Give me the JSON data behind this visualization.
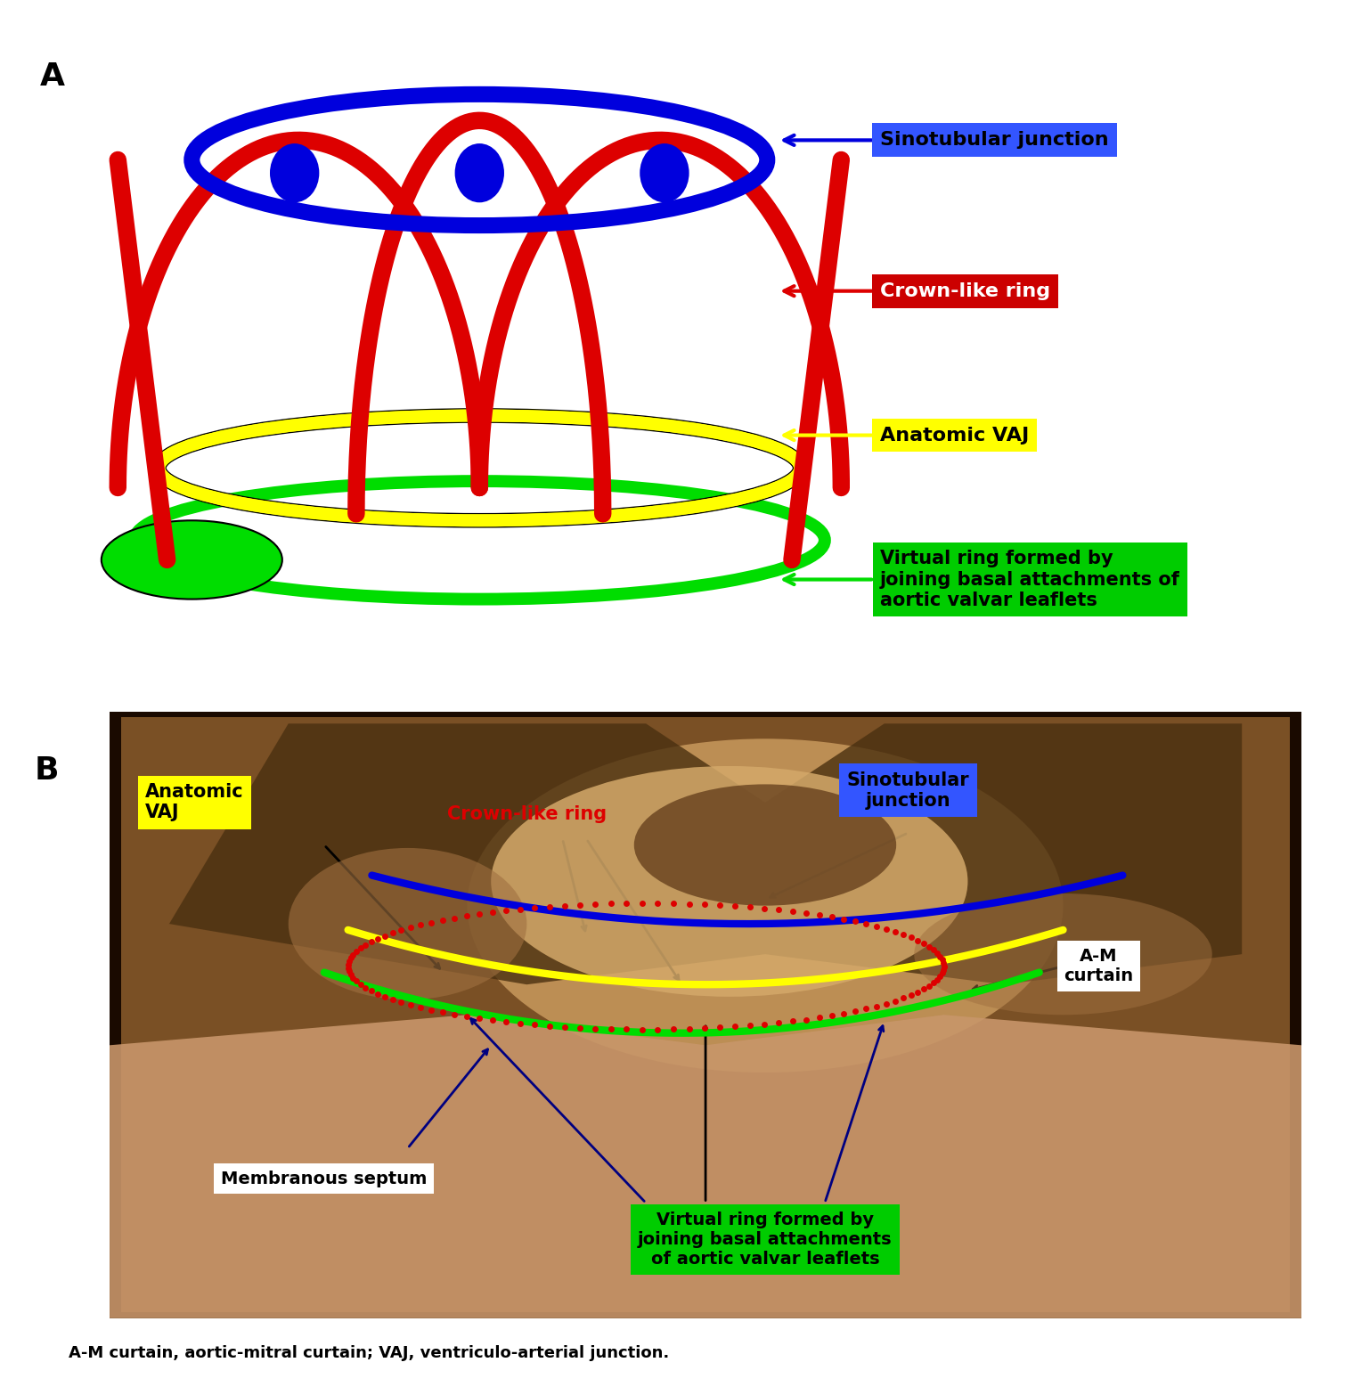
{
  "background_color": "#ffffff",
  "panel_A_label": "A",
  "panel_B_label": "B",
  "caption": "A-M curtain, aortic-mitral curtain; VAJ, ventriculo-arterial junction.",
  "caption_fontsize": 13,
  "panel_label_fontsize": 26,
  "colors": {
    "blue": "#0000dd",
    "red": "#dd0000",
    "yellow": "#ffff00",
    "green": "#00dd00",
    "label_blue_bg": "#3355ff",
    "label_red_bg": "#cc0000",
    "label_yellow_bg": "#ffff00",
    "label_green_bg": "#00cc00",
    "white": "#ffffff",
    "black": "#000000",
    "dark_blue": "#000080",
    "photo_dark": "#1a0a00",
    "photo_mid": "#8b5e2a",
    "photo_light": "#c8966a",
    "photo_cream": "#d4a96a"
  },
  "labels_A": {
    "sinotubular": "Sinotubular junction",
    "crown": "Crown-like ring",
    "vaj": "Anatomic VAJ",
    "virtual": "Virtual ring formed by\njoining basal attachments of\naortic valvar leaflets"
  },
  "labels_B": {
    "anatomic_vaj": "Anatomic\nVAJ",
    "crown": "Crown-like ring",
    "sinotubular": "Sinotubular\njunction",
    "am_curtain": "A-M\ncurtain",
    "membranous": "Membranous septum",
    "virtual": "Virtual ring formed by\njoining basal attachments\nof aortic valvar leaflets"
  }
}
